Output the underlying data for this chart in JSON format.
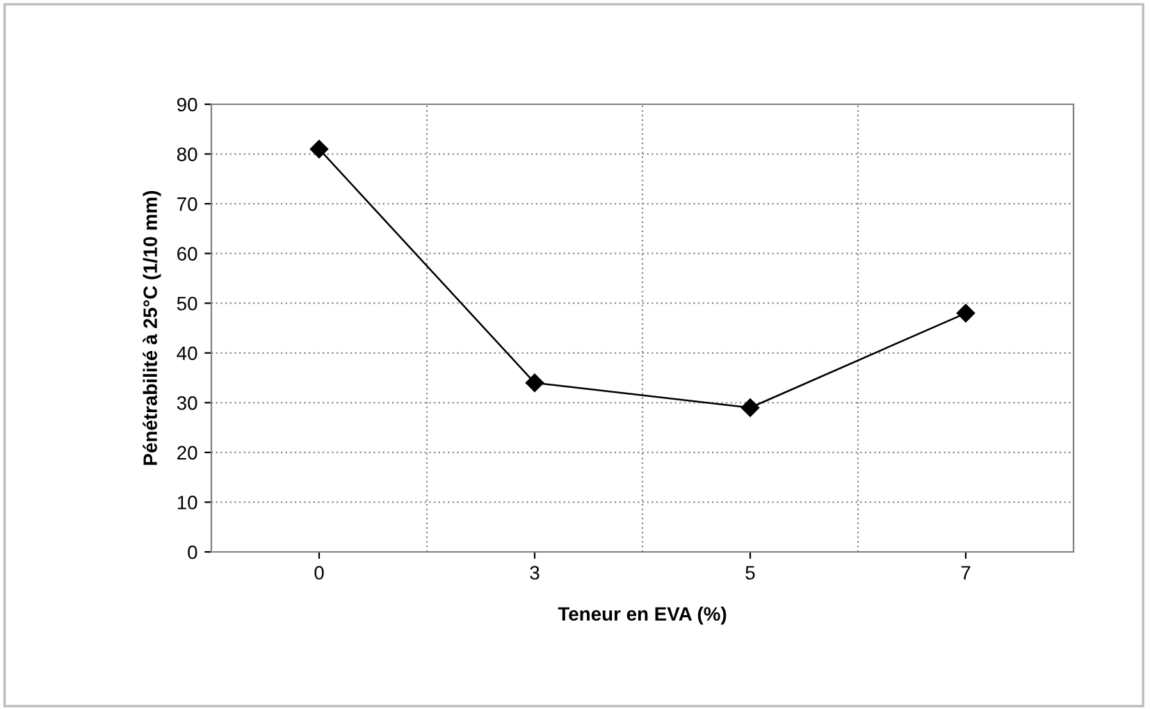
{
  "chart_data": {
    "type": "line",
    "xlabel": "Teneur en EVA (%)",
    "ylabel": "Pénétrabilité à 25°C (1/10 mm)",
    "categories": [
      "0",
      "3",
      "5",
      "7"
    ],
    "series": [
      {
        "color": "#000000",
        "values": [
          81,
          34,
          29,
          48
        ]
      }
    ],
    "ylim": [
      0,
      90
    ],
    "yticks": [
      0,
      10,
      20,
      30,
      40,
      50,
      60,
      70,
      80,
      90
    ],
    "grid": true,
    "marker": "diamond",
    "line_style": "solid",
    "legend": false
  }
}
